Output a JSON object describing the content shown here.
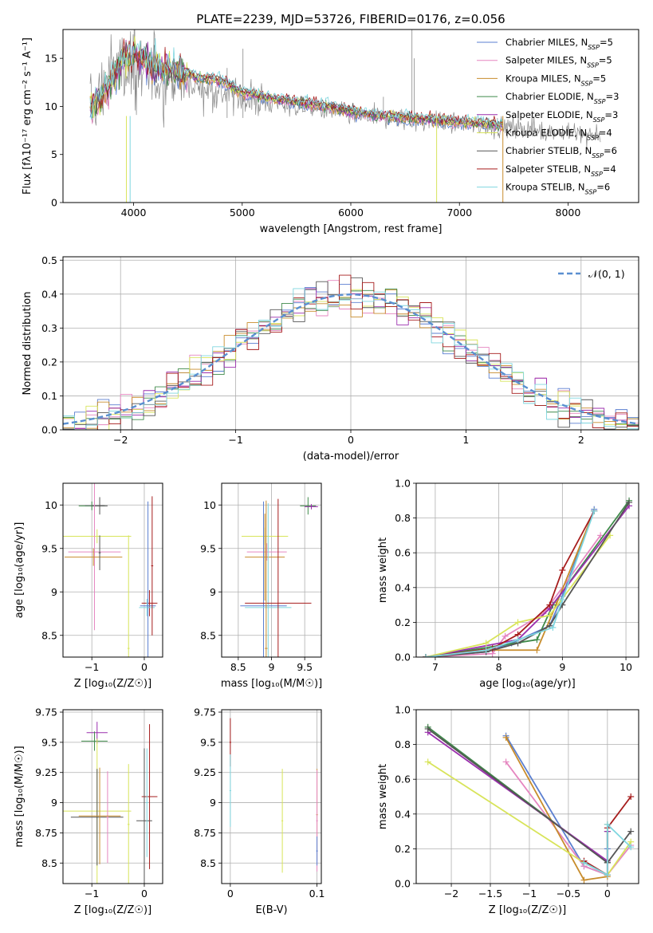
{
  "figure": {
    "title": "PLATE=2239, MJD=53726, FIBERID=0176, z=0.056",
    "colors": {
      "Chabrier MILES": "#5b7fd0",
      "Salpeter MILES": "#e586c0",
      "Kroupa MILES": "#c88c2c",
      "Chabrier ELODIE": "#3f8a4a",
      "Salpeter ELODIE": "#9b2fae",
      "Kroupa ELODIE": "#d8e45a",
      "Chabrier STELIB": "#555555",
      "Salpeter STELIB": "#a61c1c",
      "Kroupa STELIB": "#7fd6df",
      "data": "#888888",
      "normal": "#5a8fd0"
    }
  },
  "chart_data": [
    {
      "id": "spectrum",
      "type": "line",
      "xlabel": "wavelength [Angstrom, rest frame]",
      "ylabel": "Flux [f",
      "ylabel_full": "Flux [fλ10⁻¹⁷ erg cm⁻² s⁻¹ A⁻¹]",
      "xlim": [
        3350,
        8650
      ],
      "ylim": [
        0,
        18
      ],
      "xticks": [
        4000,
        5000,
        6000,
        7000,
        8000
      ],
      "yticks": [
        0,
        5,
        10,
        15
      ],
      "legend_position": "upper-right",
      "legend": [
        {
          "name": "Chabrier MILES",
          "nssp": "5"
        },
        {
          "name": "Salpeter MILES",
          "nssp": "5"
        },
        {
          "name": "Kroupa MILES",
          "nssp": "5"
        },
        {
          "name": "Chabrier ELODIE",
          "nssp": "3"
        },
        {
          "name": "Salpeter ELODIE",
          "nssp": "3"
        },
        {
          "name": "Kroupa ELODIE",
          "nssp": "4"
        },
        {
          "name": "Chabrier STELIB",
          "nssp": "6"
        },
        {
          "name": "Salpeter STELIB",
          "nssp": "4"
        },
        {
          "name": "Kroupa STELIB",
          "nssp": "6"
        }
      ],
      "data_envelope": {
        "x": [
          3600,
          3700,
          3800,
          3900,
          4000,
          4100,
          4200,
          4400,
          4600,
          4800,
          5000,
          5200,
          5500,
          5800,
          6000,
          6300,
          6600,
          6900,
          7200,
          7500,
          7800,
          8000,
          8200,
          8300
        ],
        "y": [
          9.8,
          11.5,
          13.5,
          14.5,
          14.0,
          13.5,
          13.0,
          12.5,
          12.0,
          11.5,
          11.0,
          10.5,
          10.0,
          9.5,
          9.0,
          8.8,
          8.5,
          8.3,
          8.0,
          7.8,
          7.5,
          7.3,
          7.0,
          7.0
        ]
      },
      "model_x": [
        3600,
        3700,
        3800,
        3900,
        4000,
        4100,
        4200,
        4400,
        4600,
        4800,
        5000,
        5200,
        5500,
        5800,
        6000,
        6300,
        6600,
        6900,
        7200,
        7400
      ],
      "model_y": [
        9.8,
        11.0,
        12.5,
        15.0,
        15.5,
        15.0,
        14.0,
        13.8,
        13.0,
        12.8,
        11.5,
        11.0,
        10.5,
        10.0,
        9.5,
        9.0,
        8.8,
        8.5,
        8.3,
        8.0
      ]
    },
    {
      "id": "residual-histogram",
      "type": "histogram",
      "xlabel": "(data-model)/error",
      "ylabel": "Normed distribution",
      "xlim": [
        -2.5,
        2.5
      ],
      "ylim": [
        0,
        0.51
      ],
      "xticks": [
        -2,
        -1,
        0,
        1,
        2
      ],
      "yticks": [
        0.0,
        0.1,
        0.2,
        0.3,
        0.4,
        0.5
      ],
      "grid": true,
      "legend_position": "upper-right",
      "normal_label": "𝒩(0, 1)"
    },
    {
      "id": "age-vs-Z",
      "type": "errorbar",
      "xlabel": "Z [log₁₀(Z/Z☉)]",
      "ylabel": "age  [log₁₀(age/yr)]",
      "xlim": [
        -1.55,
        0.35
      ],
      "ylim": [
        8.25,
        10.25
      ],
      "xticks": [
        -1,
        0
      ],
      "yticks": [
        8.5,
        9.0,
        9.5,
        10.0
      ],
      "grid": true
    },
    {
      "id": "age-vs-mass",
      "type": "errorbar",
      "xlabel": "mass [log₁₀(M/M☉)]",
      "ylabel": "",
      "xlim": [
        8.25,
        9.75
      ],
      "ylim": [
        8.25,
        10.25
      ],
      "xticks": [
        8.5,
        9.0,
        9.5
      ],
      "yticks": [
        8.5,
        9.0,
        9.5,
        10.0
      ],
      "grid": true
    },
    {
      "id": "cumulative-mass-vs-age",
      "type": "line",
      "xlabel": "age  [log₁₀(age/yr)]",
      "ylabel": "mass weight",
      "xlim": [
        6.7,
        10.2
      ],
      "ylim": [
        0,
        1.0
      ],
      "xticks": [
        7,
        8,
        9,
        10
      ],
      "yticks": [
        0.0,
        0.2,
        0.4,
        0.6,
        0.8,
        1.0
      ],
      "grid": true,
      "series": [
        {
          "name": "Chabrier MILES",
          "x": [
            6.85,
            7.8,
            8.2,
            8.8,
            9.0,
            9.5
          ],
          "y": [
            0.0,
            0.03,
            0.08,
            0.18,
            0.35,
            0.85
          ]
        },
        {
          "name": "Salpeter MILES",
          "x": [
            6.85,
            7.9,
            8.1,
            8.7,
            9.6
          ],
          "y": [
            0.0,
            0.02,
            0.12,
            0.25,
            0.7
          ]
        },
        {
          "name": "Kroupa MILES",
          "x": [
            6.85,
            7.8,
            8.6,
            8.9,
            9.5
          ],
          "y": [
            0.0,
            0.04,
            0.04,
            0.3,
            0.84
          ]
        },
        {
          "name": "Chabrier ELODIE",
          "x": [
            6.85,
            8.6,
            8.85,
            10.05
          ],
          "y": [
            0.0,
            0.1,
            0.3,
            0.9
          ]
        },
        {
          "name": "Salpeter ELODIE",
          "x": [
            6.85,
            8.3,
            8.8,
            10.05
          ],
          "y": [
            0.0,
            0.1,
            0.28,
            0.87
          ]
        },
        {
          "name": "Kroupa ELODIE",
          "x": [
            6.85,
            7.8,
            8.3,
            8.8,
            9.75
          ],
          "y": [
            0.0,
            0.08,
            0.2,
            0.24,
            0.7
          ]
        },
        {
          "name": "Chabrier STELIB",
          "x": [
            6.85,
            7.8,
            8.3,
            8.8,
            9.0,
            10.05
          ],
          "y": [
            0.0,
            0.03,
            0.08,
            0.18,
            0.3,
            0.89
          ]
        },
        {
          "name": "Salpeter STELIB",
          "x": [
            6.85,
            7.9,
            8.3,
            8.8,
            9.0,
            9.5
          ],
          "y": [
            0.0,
            0.05,
            0.13,
            0.3,
            0.5,
            0.84
          ]
        },
        {
          "name": "Kroupa STELIB",
          "x": [
            6.85,
            7.8,
            8.3,
            8.85,
            9.0,
            9.5
          ],
          "y": [
            0.0,
            0.04,
            0.1,
            0.17,
            0.33,
            0.84
          ]
        }
      ]
    },
    {
      "id": "mass-vs-Z",
      "type": "errorbar",
      "xlabel": "Z [log₁₀(Z/Z☉)]",
      "ylabel": "mass [log₁₀(M/M☉)]",
      "xlim": [
        -1.55,
        0.35
      ],
      "ylim": [
        8.33,
        9.77
      ],
      "xticks": [
        -1,
        0
      ],
      "yticks": [
        8.5,
        8.75,
        9.0,
        9.25,
        9.5,
        9.75
      ],
      "grid": true
    },
    {
      "id": "mass-vs-EBV",
      "type": "errorbar",
      "xlabel": "E(B-V)",
      "ylabel": "",
      "xlim": [
        -0.01,
        0.105
      ],
      "ylim": [
        8.33,
        9.77
      ],
      "xticks": [
        0.0,
        0.1
      ],
      "yticks": [
        8.5,
        8.75,
        9.0,
        9.25,
        9.5,
        9.75
      ],
      "grid": true
    },
    {
      "id": "cumulative-mass-vs-Z",
      "type": "line",
      "xlabel": "Z [log₁₀(Z/Z☉)]",
      "ylabel": "mass weight",
      "xlim": [
        -2.45,
        0.4
      ],
      "ylim": [
        0,
        1.0
      ],
      "xticks": [
        -2.0,
        -1.5,
        -1.0,
        -0.5,
        0.0
      ],
      "yticks": [
        0.0,
        0.2,
        0.4,
        0.6,
        0.8,
        1.0
      ],
      "grid": true,
      "series": [
        {
          "name": "Chabrier MILES",
          "x": [
            -1.3,
            -0.3,
            0.0,
            0.0
          ],
          "y": [
            0.85,
            0.1,
            0.05,
            0.2
          ]
        },
        {
          "name": "Salpeter MILES",
          "x": [
            -1.3,
            -0.3,
            0.0,
            0.3
          ],
          "y": [
            0.7,
            0.1,
            0.05,
            0.22
          ]
        },
        {
          "name": "Kroupa MILES",
          "x": [
            -1.3,
            -0.3,
            0.0,
            0.0
          ],
          "y": [
            0.84,
            0.02,
            0.04,
            0.34
          ]
        },
        {
          "name": "Chabrier ELODIE",
          "x": [
            -2.3,
            0.0,
            0.0
          ],
          "y": [
            0.9,
            0.12,
            0.3
          ]
        },
        {
          "name": "Salpeter ELODIE",
          "x": [
            -2.3,
            0.0,
            0.0
          ],
          "y": [
            0.87,
            0.13,
            0.3
          ]
        },
        {
          "name": "Kroupa ELODIE",
          "x": [
            -2.3,
            -0.3,
            0.0,
            0.3
          ],
          "y": [
            0.7,
            0.12,
            0.05,
            0.24
          ]
        },
        {
          "name": "Chabrier STELIB",
          "x": [
            -2.3,
            0.0,
            0.0,
            0.3
          ],
          "y": [
            0.89,
            0.12,
            0.12,
            0.3
          ]
        },
        {
          "name": "Salpeter STELIB",
          "x": [
            -0.3,
            0.0,
            0.0,
            0.3
          ],
          "y": [
            0.13,
            0.05,
            0.32,
            0.5
          ]
        },
        {
          "name": "Kroupa STELIB",
          "x": [
            -0.3,
            0.0,
            0.0,
            0.3
          ],
          "y": [
            0.12,
            0.05,
            0.34,
            0.21
          ]
        }
      ]
    }
  ]
}
